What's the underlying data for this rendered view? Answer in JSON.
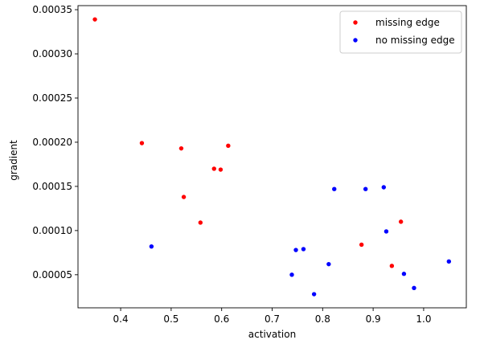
{
  "chart_data": {
    "type": "scatter",
    "title": "",
    "xlabel": "activation",
    "ylabel": "gradient",
    "xlim": [
      0.3155,
      1.0845
    ],
    "ylim": [
      1.255e-05,
      0.0003546
    ],
    "x_ticks": [
      0.4,
      0.5,
      0.6,
      0.7,
      0.8,
      0.9,
      1.0
    ],
    "x_tick_labels": [
      "0.4",
      "0.5",
      "0.6",
      "0.7",
      "0.8",
      "0.9",
      "1.0"
    ],
    "y_ticks": [
      5e-05,
      0.0001,
      0.00015,
      0.0002,
      0.00025,
      0.0003,
      0.00035
    ],
    "y_tick_labels": [
      "0.00005",
      "0.00010",
      "0.00015",
      "0.00020",
      "0.00025",
      "0.00030",
      "0.00035"
    ],
    "grid": false,
    "legend_position": "top-right",
    "series": [
      {
        "name": "missing edge",
        "color": "#ff0000",
        "points": [
          [
            0.349,
            0.000339
          ],
          [
            0.442,
            0.000199
          ],
          [
            0.52,
            0.000193
          ],
          [
            0.525,
            0.000138
          ],
          [
            0.558,
            0.000109
          ],
          [
            0.585,
            0.00017
          ],
          [
            0.598,
            0.000169
          ],
          [
            0.613,
            0.000196
          ],
          [
            0.877,
            8.4e-05
          ],
          [
            0.937,
            6e-05
          ],
          [
            0.955,
            0.00011
          ]
        ]
      },
      {
        "name": "no missing edge",
        "color": "#0000ff",
        "points": [
          [
            0.461,
            8.2e-05
          ],
          [
            0.739,
            5e-05
          ],
          [
            0.747,
            7.8e-05
          ],
          [
            0.762,
            7.9e-05
          ],
          [
            0.783,
            2.8e-05
          ],
          [
            0.812,
            6.2e-05
          ],
          [
            0.823,
            0.000147
          ],
          [
            0.885,
            0.000147
          ],
          [
            0.921,
            0.000149
          ],
          [
            0.926,
            9.9e-05
          ],
          [
            0.961,
            5.1e-05
          ],
          [
            0.981,
            3.5e-05
          ],
          [
            1.05,
            6.5e-05
          ]
        ]
      }
    ]
  }
}
